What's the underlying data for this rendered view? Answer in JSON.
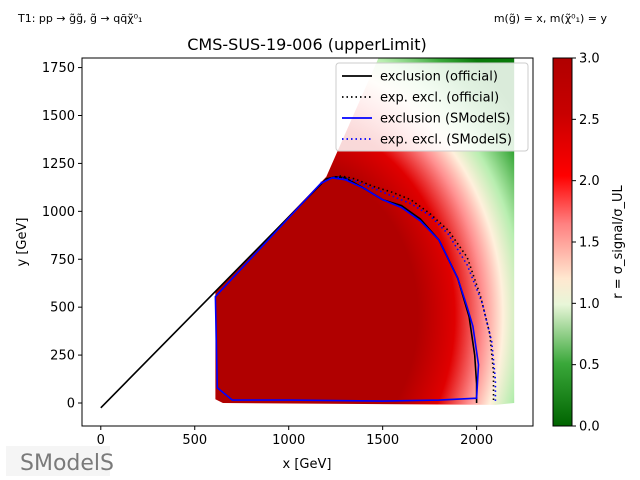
{
  "topleft_label": "T1: pp → g̃g̃, g̃ → qq̄χ̃⁰₁",
  "topright_label": "m(g̃) = x, m(χ̃⁰₁) = y",
  "logo_text": "SModelS",
  "colors": {
    "official": "#000000",
    "smodels": "#0000ff",
    "cmap": [
      "#006400",
      "#90ee90",
      "#fff8dc",
      "#ff0000",
      "#b00000"
    ]
  },
  "chart_data": {
    "type": "heatmap",
    "title": "CMS-SUS-19-006 (upperLimit)",
    "xlabel": "x [GeV]",
    "ylabel": "y [GeV]",
    "xlim": [
      -100,
      2300
    ],
    "ylim": [
      -120,
      1800
    ],
    "xticks": [
      0,
      500,
      1000,
      1500,
      2000
    ],
    "yticks": [
      0,
      250,
      500,
      750,
      1000,
      1250,
      1500,
      1750
    ],
    "colorbar": {
      "label": "r = σ_signal/σ_UL",
      "range": [
        0.0,
        3.0
      ],
      "ticks": [
        0.0,
        0.5,
        1.0,
        1.5,
        2.0,
        2.5,
        3.0
      ],
      "tick_labels": [
        "0.0",
        "0.5",
        "1.0",
        "1.5",
        "2.0",
        "2.5",
        "3.0"
      ]
    },
    "legend_position": "top-right",
    "series": [
      {
        "name": "exclusion (official)",
        "style": "solid",
        "color": "#000000",
        "x": [
          0,
          1200,
          1250,
          1300,
          1400,
          1500,
          1600,
          1700,
          1800,
          1900,
          1960,
          1990,
          2000,
          2000
        ],
        "y": [
          -25,
          1170,
          1180,
          1175,
          1120,
          1060,
          1030,
          960,
          850,
          650,
          450,
          250,
          100,
          0
        ]
      },
      {
        "name": "exp. excl. (official)",
        "style": "dotted",
        "color": "#000000",
        "x": [
          1200,
          1280,
          1350,
          1450,
          1550,
          1650,
          1750,
          1850,
          1950,
          2020,
          2070,
          2090,
          2090
        ],
        "y": [
          1170,
          1185,
          1170,
          1130,
          1100,
          1060,
          990,
          900,
          760,
          560,
          360,
          160,
          0
        ]
      },
      {
        "name": "exclusion (SModelS)",
        "style": "solid",
        "color": "#0000ff",
        "x": [
          610,
          620,
          700,
          1000,
          1500,
          1800,
          2000,
          2010,
          1980,
          1950,
          1900,
          1850,
          1800,
          1700,
          1600,
          1500,
          1400,
          1300,
          1230,
          1170,
          610,
          610
        ],
        "y": [
          550,
          80,
          15,
          15,
          10,
          15,
          25,
          200,
          400,
          500,
          650,
          750,
          850,
          950,
          1020,
          1060,
          1120,
          1165,
          1175,
          1145,
          555,
          550
        ]
      },
      {
        "name": "exp. excl. (SModelS)",
        "style": "dotted",
        "color": "#0000ff",
        "x": [
          1170,
          1250,
          1350,
          1450,
          1550,
          1650,
          1750,
          1850,
          1950,
          2030,
          2080,
          2100,
          2100
        ],
        "y": [
          1150,
          1180,
          1160,
          1120,
          1080,
          1040,
          980,
          880,
          720,
          520,
          320,
          120,
          0
        ]
      }
    ]
  }
}
